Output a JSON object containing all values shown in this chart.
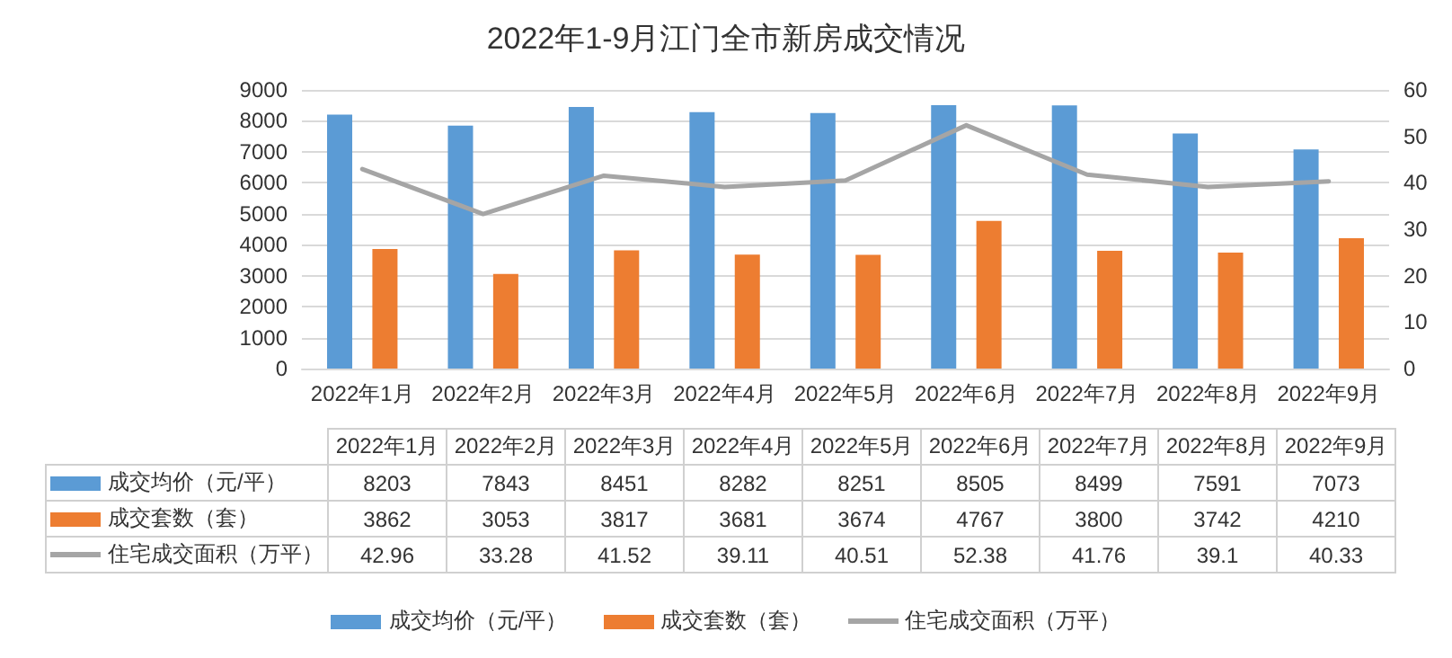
{
  "chart_data": {
    "type": "bar",
    "title": "2022年1-9月江门全市新房成交情况",
    "categories": [
      "2022年1月",
      "2022年2月",
      "2022年3月",
      "2022年4月",
      "2022年5月",
      "2022年6月",
      "2022年7月",
      "2022年8月",
      "2022年9月"
    ],
    "series": [
      {
        "name": "成交均价（元/平）",
        "color": "#5b9bd5",
        "values": [
          8203,
          7843,
          8451,
          8282,
          8251,
          8505,
          8499,
          7591,
          7073
        ]
      },
      {
        "name": "成交套数（套）",
        "color": "#ed7d31",
        "values": [
          3862,
          3053,
          3817,
          3681,
          3674,
          4767,
          3800,
          3742,
          4210
        ]
      },
      {
        "name": "住宅成交面积（万平）",
        "color": "#a5a5a5",
        "type": "line",
        "axis": "y2",
        "values": [
          42.96,
          33.28,
          41.52,
          39.11,
          40.51,
          52.38,
          41.76,
          39.1,
          40.33
        ]
      }
    ],
    "ylim": [
      0,
      9000
    ],
    "yticks": [
      0,
      {
        "value": 1000,
        "label": "1000"
      },
      {
        "value": 2000,
        "label": "2000"
      },
      {
        "value": 3000,
        "label": "3000"
      },
      {
        "value": 4000,
        "label": "4000"
      },
      {
        "value": 5000,
        "label": "5000"
      },
      {
        "value": 6000,
        "label": "6000"
      },
      {
        "value": 7000,
        "label": "7000"
      },
      {
        "value": 8000,
        "label": "8000"
      },
      {
        "value": 9000,
        "label": "9000"
      }
    ],
    "y2lim": [
      0,
      60
    ],
    "y2ticks": [
      0,
      10,
      20,
      30,
      40,
      50,
      60
    ],
    "grid": "y",
    "legend": "bottom",
    "data_labels": true,
    "marker": "none",
    "line_style": "solid"
  }
}
